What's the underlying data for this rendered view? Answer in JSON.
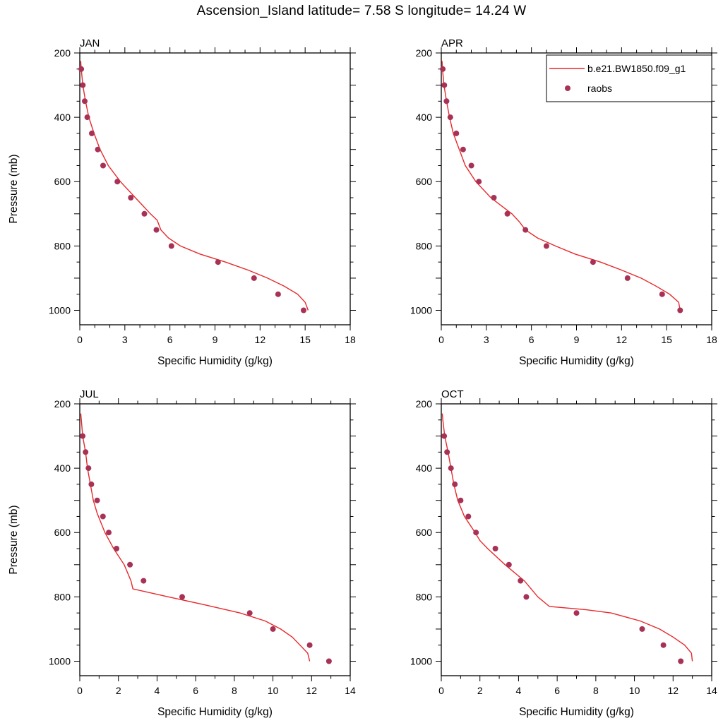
{
  "page_title": "Ascension_Island  latitude= 7.58 S longitude= 14.24 W",
  "colors": {
    "model_line": "#e8292b",
    "raobs_dot": "#a73256",
    "axis": "#000000",
    "background": "#ffffff"
  },
  "legend": {
    "line_label": "b.e21.BW1850.f09_g1",
    "dot_label": "raobs",
    "position": "top-right-of-APR-panel"
  },
  "chart_data": [
    {
      "type": "line",
      "title": "JAN",
      "xlabel": "Specific Humidity (g/kg)",
      "ylabel": "Pressure (mb)",
      "xlim": [
        0,
        18
      ],
      "xticks": [
        0,
        3,
        6,
        9,
        12,
        15,
        18
      ],
      "ylim": [
        200,
        1045
      ],
      "yticks": [
        200,
        400,
        600,
        800,
        1000
      ],
      "y_increases_downward": true,
      "series": [
        {
          "name": "b.e21.BW1850.f09_g1",
          "style": "line",
          "pressure_mb": [
            225,
            250,
            300,
            350,
            400,
            450,
            500,
            550,
            600,
            650,
            675,
            700,
            720,
            750,
            775,
            800,
            825,
            850,
            875,
            900,
            925,
            950,
            975,
            1000
          ],
          "q_gkg": [
            0.06,
            0.1,
            0.2,
            0.38,
            0.6,
            0.95,
            1.35,
            1.9,
            2.7,
            3.7,
            4.2,
            4.7,
            5.15,
            5.4,
            5.9,
            6.7,
            8.0,
            9.7,
            11.2,
            12.5,
            13.6,
            14.5,
            15.0,
            15.2
          ]
        },
        {
          "name": "raobs",
          "style": "scatter",
          "pressure_mb": [
            250,
            300,
            350,
            400,
            450,
            500,
            550,
            600,
            650,
            700,
            750,
            800,
            850,
            900,
            950,
            1000
          ],
          "q_gkg": [
            0.1,
            0.2,
            0.33,
            0.5,
            0.8,
            1.2,
            1.55,
            2.5,
            3.4,
            4.3,
            5.1,
            6.1,
            9.2,
            11.6,
            13.2,
            14.9
          ]
        }
      ]
    },
    {
      "type": "line",
      "title": "APR",
      "xlabel": "Specific Humidity (g/kg)",
      "ylabel": "Pressure (mb)",
      "xlim": [
        0,
        18
      ],
      "xticks": [
        0,
        3,
        6,
        9,
        12,
        15,
        18
      ],
      "ylim": [
        200,
        1045
      ],
      "yticks": [
        200,
        400,
        600,
        800,
        1000
      ],
      "y_increases_downward": true,
      "series": [
        {
          "name": "b.e21.BW1850.f09_g1",
          "style": "line",
          "pressure_mb": [
            225,
            250,
            300,
            350,
            400,
            450,
            500,
            550,
            600,
            650,
            675,
            700,
            725,
            750,
            775,
            800,
            825,
            850,
            875,
            900,
            925,
            950,
            975,
            1000
          ],
          "q_gkg": [
            0.05,
            0.08,
            0.18,
            0.35,
            0.55,
            0.8,
            1.2,
            1.6,
            2.3,
            3.3,
            4.0,
            4.7,
            5.2,
            5.6,
            6.4,
            7.6,
            8.9,
            10.6,
            12.0,
            13.3,
            14.3,
            15.2,
            15.8,
            15.9
          ]
        },
        {
          "name": "raobs",
          "style": "scatter",
          "pressure_mb": [
            250,
            300,
            350,
            400,
            450,
            500,
            550,
            600,
            650,
            700,
            750,
            800,
            850,
            900,
            950,
            1000
          ],
          "q_gkg": [
            0.1,
            0.2,
            0.35,
            0.6,
            1.0,
            1.45,
            2.0,
            2.5,
            3.5,
            4.4,
            5.6,
            7.0,
            10.1,
            12.4,
            14.7,
            15.9
          ]
        }
      ]
    },
    {
      "type": "line",
      "title": "JUL",
      "xlabel": "Specific Humidity (g/kg)",
      "ylabel": "Pressure (mb)",
      "xlim": [
        0,
        14
      ],
      "xticks": [
        0,
        2,
        4,
        6,
        8,
        10,
        12,
        14
      ],
      "ylim": [
        200,
        1045
      ],
      "yticks": [
        200,
        400,
        600,
        800,
        1000
      ],
      "y_increases_downward": true,
      "series": [
        {
          "name": "b.e21.BW1850.f09_g1",
          "style": "line",
          "pressure_mb": [
            230,
            250,
            300,
            350,
            400,
            450,
            500,
            540,
            600,
            650,
            700,
            750,
            775,
            800,
            825,
            850,
            875,
            900,
            925,
            950,
            975,
            1000
          ],
          "q_gkg": [
            0.05,
            0.08,
            0.15,
            0.3,
            0.4,
            0.55,
            0.7,
            0.9,
            1.3,
            1.75,
            2.3,
            2.65,
            2.75,
            4.6,
            6.5,
            8.3,
            9.6,
            10.4,
            11.0,
            11.4,
            11.8,
            11.9
          ]
        },
        {
          "name": "raobs",
          "style": "scatter",
          "pressure_mb": [
            300,
            350,
            400,
            450,
            500,
            550,
            600,
            650,
            700,
            750,
            800,
            850,
            900,
            950,
            1000
          ],
          "q_gkg": [
            0.15,
            0.3,
            0.45,
            0.6,
            0.9,
            1.2,
            1.5,
            1.9,
            2.6,
            3.3,
            5.3,
            8.8,
            10.0,
            11.9,
            12.9
          ]
        }
      ]
    },
    {
      "type": "line",
      "title": "OCT",
      "xlabel": "Specific Humidity (g/kg)",
      "ylabel": "Pressure (mb)",
      "xlim": [
        0,
        14
      ],
      "xticks": [
        0,
        2,
        4,
        6,
        8,
        10,
        12,
        14
      ],
      "ylim": [
        200,
        1045
      ],
      "yticks": [
        200,
        400,
        600,
        800,
        1000
      ],
      "y_increases_downward": true,
      "series": [
        {
          "name": "b.e21.BW1850.f09_g1",
          "style": "line",
          "pressure_mb": [
            230,
            250,
            300,
            350,
            400,
            450,
            500,
            550,
            600,
            625,
            650,
            700,
            750,
            800,
            830,
            840,
            850,
            875,
            900,
            925,
            950,
            975,
            1000
          ],
          "q_gkg": [
            0.05,
            0.08,
            0.18,
            0.35,
            0.5,
            0.65,
            0.85,
            1.2,
            1.75,
            2.0,
            2.4,
            3.3,
            4.3,
            5.0,
            5.6,
            7.5,
            8.8,
            10.3,
            11.3,
            12.0,
            12.6,
            12.95,
            13.0
          ]
        },
        {
          "name": "raobs",
          "style": "scatter",
          "pressure_mb": [
            300,
            350,
            400,
            450,
            500,
            550,
            600,
            650,
            700,
            750,
            800,
            850,
            900,
            950,
            1000
          ],
          "q_gkg": [
            0.15,
            0.3,
            0.5,
            0.7,
            1.0,
            1.4,
            1.8,
            2.8,
            3.5,
            4.1,
            4.4,
            7.0,
            10.4,
            11.5,
            12.4
          ]
        }
      ]
    }
  ]
}
